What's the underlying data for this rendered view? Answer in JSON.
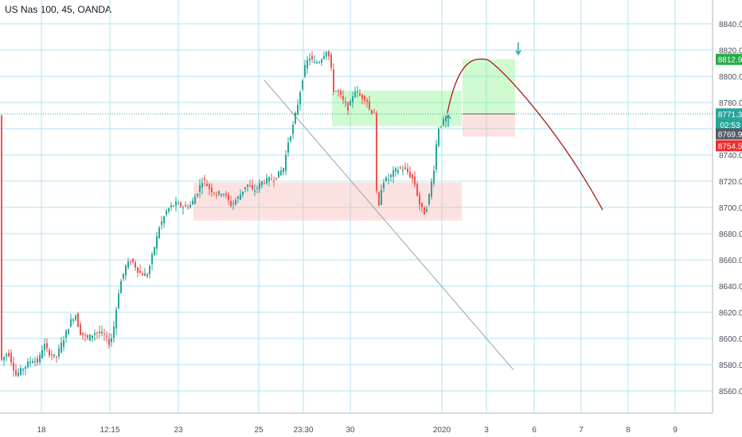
{
  "title": "US Nas 100, 45, OANDA",
  "colors": {
    "up": "#26a69a",
    "down": "#ef5350",
    "grid": "#aee6f2",
    "axis": "#b2b5be",
    "green_tag": "#22ab43",
    "teal_tag": "#26a69a",
    "red_tag": "#ef2b2b",
    "dark_tag": "#555b66",
    "zone_red": "rgba(245,170,170,0.35)",
    "zone_green": "rgba(120,240,120,0.35)",
    "curve": "#a61d1d",
    "trendline": "#9aa0a6",
    "price_line": "#26a69a"
  },
  "chart_data": {
    "type": "candlestick",
    "title": "US Nas 100, 45, OANDA",
    "ylim": [
      8540,
      8850
    ],
    "y_ticks": [
      "8560.0",
      "8580.0",
      "8600.0",
      "8620.0",
      "8640.0",
      "8660.0",
      "8680.0",
      "8700.0",
      "8720.0",
      "8740.0",
      "8760.0",
      "8780.0",
      "8800.0",
      "8820.0",
      "8840.0"
    ],
    "x_ticks": [
      "18",
      "12:15",
      "23",
      "25",
      "23:30",
      "30",
      "2020",
      "3",
      "6",
      "7",
      "8",
      "9"
    ],
    "price_path": [
      [
        0,
        8582
      ],
      [
        10,
        8590
      ],
      [
        20,
        8572
      ],
      [
        30,
        8578
      ],
      [
        40,
        8584
      ],
      [
        48,
        8582
      ],
      [
        55,
        8596
      ],
      [
        60,
        8590
      ],
      [
        70,
        8585
      ],
      [
        80,
        8600
      ],
      [
        90,
        8615
      ],
      [
        95,
        8618
      ],
      [
        100,
        8605
      ],
      [
        110,
        8600
      ],
      [
        120,
        8605
      ],
      [
        130,
        8603
      ],
      [
        138,
        8596
      ],
      [
        142,
        8605
      ],
      [
        150,
        8640
      ],
      [
        158,
        8655
      ],
      [
        165,
        8660
      ],
      [
        175,
        8650
      ],
      [
        185,
        8648
      ],
      [
        192,
        8665
      ],
      [
        200,
        8685
      ],
      [
        210,
        8698
      ],
      [
        220,
        8703
      ],
      [
        232,
        8700
      ],
      [
        240,
        8702
      ],
      [
        248,
        8712
      ],
      [
        255,
        8722
      ],
      [
        262,
        8715
      ],
      [
        272,
        8710
      ],
      [
        280,
        8712
      ],
      [
        290,
        8702
      ],
      [
        300,
        8708
      ],
      [
        310,
        8718
      ],
      [
        318,
        8712
      ],
      [
        330,
        8720
      ],
      [
        345,
        8722
      ],
      [
        356,
        8730
      ],
      [
        362,
        8750
      ],
      [
        368,
        8762
      ],
      [
        375,
        8782
      ],
      [
        382,
        8805
      ],
      [
        388,
        8815
      ],
      [
        395,
        8810
      ],
      [
        402,
        8812
      ],
      [
        410,
        8820
      ],
      [
        415,
        8812
      ],
      [
        418,
        8790
      ],
      [
        425,
        8788
      ],
      [
        432,
        8780
      ],
      [
        438,
        8775
      ],
      [
        445,
        8790
      ],
      [
        452,
        8785
      ],
      [
        460,
        8783
      ],
      [
        465,
        8773
      ],
      [
        470,
        8773
      ],
      [
        474,
        8690
      ],
      [
        480,
        8720
      ],
      [
        488,
        8722
      ],
      [
        496,
        8728
      ],
      [
        505,
        8730
      ],
      [
        512,
        8727
      ],
      [
        520,
        8720
      ],
      [
        528,
        8700
      ],
      [
        534,
        8695
      ],
      [
        540,
        8712
      ],
      [
        545,
        8730
      ],
      [
        550,
        8760
      ],
      [
        556,
        8765
      ],
      [
        562,
        8770
      ]
    ],
    "zones": [
      {
        "name": "demand-zone",
        "x0": 243,
        "x1": 580,
        "y_top": 8719,
        "y_bottom": 8690,
        "color": "red"
      },
      {
        "name": "supply-zone",
        "x0": 417,
        "x1": 580,
        "y_top": 8789,
        "y_bottom": 8762,
        "color": "green"
      },
      {
        "name": "target-zone",
        "x0": 581,
        "x1": 647,
        "y_top": 8813,
        "y_bottom": 8771,
        "color": "green"
      },
      {
        "name": "stop-zone",
        "x0": 581,
        "x1": 647,
        "y_top": 8771,
        "y_bottom": 8754,
        "color": "red"
      }
    ],
    "trendline": {
      "x0": 332,
      "y0": 8797,
      "x1": 645,
      "y1": 8576
    },
    "projection_curve": {
      "x_start": 562,
      "y_start": 8772,
      "x_peak": 610,
      "y_peak": 8813,
      "x_end": 757,
      "y_end": 8698
    },
    "current_price": 8771.3,
    "price_tags": [
      {
        "label": "8812.9",
        "value": 8812.9,
        "color": "green"
      },
      {
        "label": "8771.3",
        "value": 8771.3,
        "color": "teal"
      },
      {
        "label": "02:53",
        "value": 8763,
        "color": "teal"
      },
      {
        "label": "8769.9",
        "value": 8756,
        "color": "dark"
      },
      {
        "label": "8754.5",
        "value": 8747,
        "color": "red"
      }
    ],
    "arrows": [
      {
        "direction": "up",
        "x": 563,
        "value": 8765
      },
      {
        "direction": "down",
        "x": 651,
        "value": 8821
      }
    ]
  }
}
